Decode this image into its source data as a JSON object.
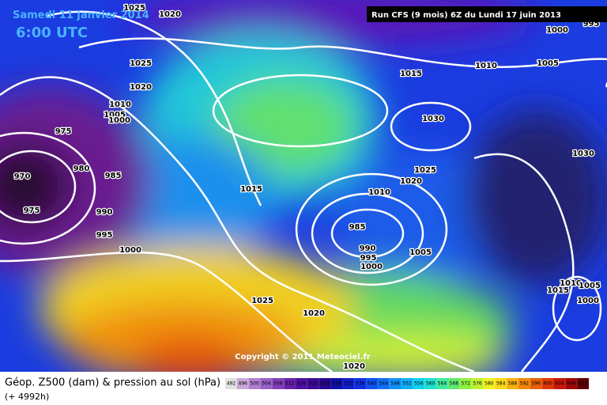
{
  "header": {
    "date": "Samedi 11 janvier 2014",
    "time": "6:00 UTC",
    "run": "Run CFS (9 mois) 6Z du Lundi 17 juin 2013"
  },
  "map": {
    "copyright": "Copyright © 2011 Meteociel.fr",
    "isobar_labels": [
      "1025",
      "1020",
      "1000",
      "995",
      "1025",
      "1010",
      "1005",
      "1015",
      "1020",
      "1010",
      "1005",
      "1000",
      "1030",
      "975",
      "1030",
      "980",
      "985",
      "1025",
      "1020",
      "970",
      "1015",
      "1010",
      "975",
      "990",
      "985",
      "995",
      "1000",
      "990",
      "1005",
      "995",
      "1000",
      "1025",
      "1010",
      "1005",
      "1015",
      "1000",
      "1020",
      "1020"
    ]
  },
  "footer": {
    "title": "Géop. Z500 (dam) & pression au sol (hPa)",
    "lead": "(+ 4992h)",
    "scale": [
      "492",
      "496",
      "500",
      "504",
      "508",
      "512",
      "516",
      "520",
      "524",
      "528",
      "532",
      "536",
      "540",
      "544",
      "548",
      "552",
      "556",
      "560",
      "564",
      "568",
      "572",
      "576",
      "580",
      "584",
      "588",
      "592",
      "596",
      "600",
      "604",
      "608",
      "612"
    ]
  }
}
